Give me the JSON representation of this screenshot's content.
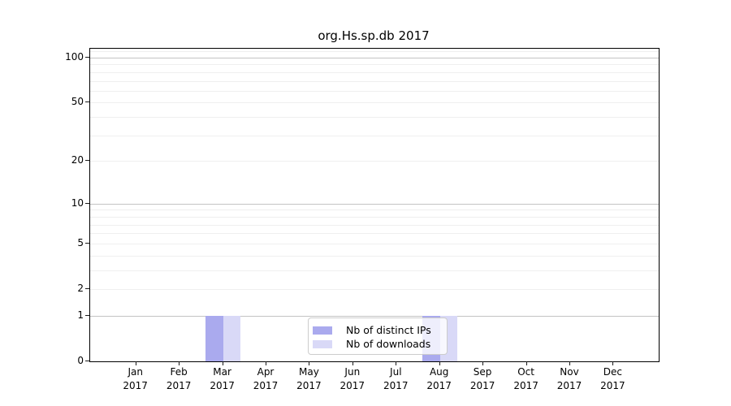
{
  "chart_data": {
    "type": "bar",
    "title": "org.Hs.sp.db 2017",
    "categories": [
      {
        "month": "Jan",
        "year": "2017"
      },
      {
        "month": "Feb",
        "year": "2017"
      },
      {
        "month": "Mar",
        "year": "2017"
      },
      {
        "month": "Apr",
        "year": "2017"
      },
      {
        "month": "May",
        "year": "2017"
      },
      {
        "month": "Jun",
        "year": "2017"
      },
      {
        "month": "Jul",
        "year": "2017"
      },
      {
        "month": "Aug",
        "year": "2017"
      },
      {
        "month": "Sep",
        "year": "2017"
      },
      {
        "month": "Oct",
        "year": "2017"
      },
      {
        "month": "Nov",
        "year": "2017"
      },
      {
        "month": "Dec",
        "year": "2017"
      }
    ],
    "series": [
      {
        "name": "Nb of distinct IPs",
        "color": "#aaaaee",
        "values": [
          0,
          0,
          1,
          0,
          0,
          0,
          0,
          1,
          0,
          0,
          0,
          0
        ]
      },
      {
        "name": "Nb of downloads",
        "color": "#d9d9f7",
        "values": [
          0,
          0,
          1,
          0,
          0,
          0,
          0,
          1,
          0,
          0,
          0,
          0
        ]
      }
    ],
    "xlabel": "",
    "ylabel": "",
    "yscale": "log10(1+y)",
    "ylim": [
      0,
      115
    ],
    "yticks": [
      0,
      1,
      2,
      5,
      10,
      20,
      50,
      100
    ],
    "major_gridline_values": [
      1,
      10,
      100
    ],
    "minor_gridline_values": [
      2,
      3,
      4,
      5,
      6,
      7,
      8,
      9,
      20,
      30,
      40,
      50,
      60,
      70,
      80,
      90,
      110
    ],
    "grid": "on",
    "legend_position": "bottom-center-inside",
    "colors": {
      "distinct_ips": "#aaaaee",
      "downloads": "#d9d9f7",
      "major_grid": "#c3c3c3",
      "minor_grid": "#efefef",
      "legend_border": "#cccccc"
    }
  }
}
